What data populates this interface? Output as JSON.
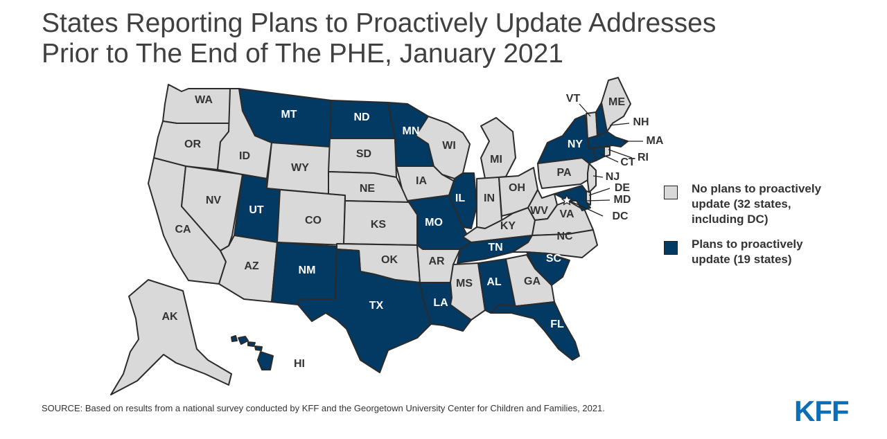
{
  "title_lines": [
    "States Reporting Plans to Proactively Update Addresses",
    "Prior to The End of The PHE, January 2021"
  ],
  "colors": {
    "no_plans": "#d9d9d9",
    "plans": "#023a63",
    "label_light": "#333333",
    "label_dark": "#ffffff",
    "logo": "#0a6fb6"
  },
  "legend": [
    {
      "key": "no_plans",
      "label": "No plans to proactively\nupdate (32 states,\nincluding DC)"
    },
    {
      "key": "plans",
      "label": "Plans to proactively\nupdate (19 states)"
    }
  ],
  "states": {
    "WA": "no_plans",
    "OR": "no_plans",
    "CA": "no_plans",
    "ID": "no_plans",
    "NV": "no_plans",
    "MT": "plans",
    "WY": "no_plans",
    "UT": "plans",
    "AZ": "no_plans",
    "CO": "no_plans",
    "NM": "plans",
    "ND": "plans",
    "SD": "no_plans",
    "NE": "no_plans",
    "KS": "no_plans",
    "OK": "no_plans",
    "TX": "plans",
    "MN": "plans",
    "IA": "no_plans",
    "MO": "plans",
    "AR": "no_plans",
    "LA": "plans",
    "WI": "no_plans",
    "IL": "plans",
    "MS": "no_plans",
    "MI": "no_plans",
    "IN": "no_plans",
    "KY": "no_plans",
    "TN": "plans",
    "AL": "plans",
    "OH": "no_plans",
    "WV": "no_plans",
    "VA": "no_plans",
    "NC": "no_plans",
    "SC": "plans",
    "GA": "no_plans",
    "FL": "plans",
    "PA": "no_plans",
    "NY": "plans",
    "NJ": "no_plans",
    "DE": "no_plans",
    "MD": "plans",
    "DC": "no_plans",
    "CT": "plans",
    "RI": "no_plans",
    "MA": "plans",
    "VT": "no_plans",
    "NH": "plans",
    "ME": "no_plans",
    "AK": "no_plans",
    "HI": "plans"
  },
  "labels": {
    "WA": "WA",
    "OR": "OR",
    "CA": "CA",
    "ID": "ID",
    "NV": "NV",
    "MT": "MT",
    "WY": "WY",
    "UT": "UT",
    "AZ": "AZ",
    "CO": "CO",
    "NM": "NM",
    "ND": "ND",
    "SD": "SD",
    "NE": "NE",
    "KS": "KS",
    "OK": "OK",
    "TX": "TX",
    "MN": "MN",
    "IA": "IA",
    "MO": "MO",
    "AR": "AR",
    "LA": "LA",
    "WI": "WI",
    "IL": "IL",
    "MS": "MS",
    "MI": "MI",
    "IN": "IN",
    "KY": "KY",
    "TN": "TN",
    "AL": "AL",
    "OH": "OH",
    "WV": "WV",
    "VA": "VA",
    "NC": "NC",
    "SC": "SC",
    "GA": "GA",
    "FL": "FL",
    "PA": "PA",
    "NY": "NY",
    "NJ": "NJ",
    "DE": "DE",
    "MD": "MD",
    "DC": "DC",
    "CT": "CT",
    "RI": "RI",
    "MA": "MA",
    "VT": "VT",
    "NH": "NH",
    "ME": "ME",
    "AK": "AK",
    "HI": "HI"
  },
  "source": "SOURCE: Based on results from a national survey conducted by KFF and the Georgetown University Center for Children and Families, 2021.",
  "logo": "KFF"
}
